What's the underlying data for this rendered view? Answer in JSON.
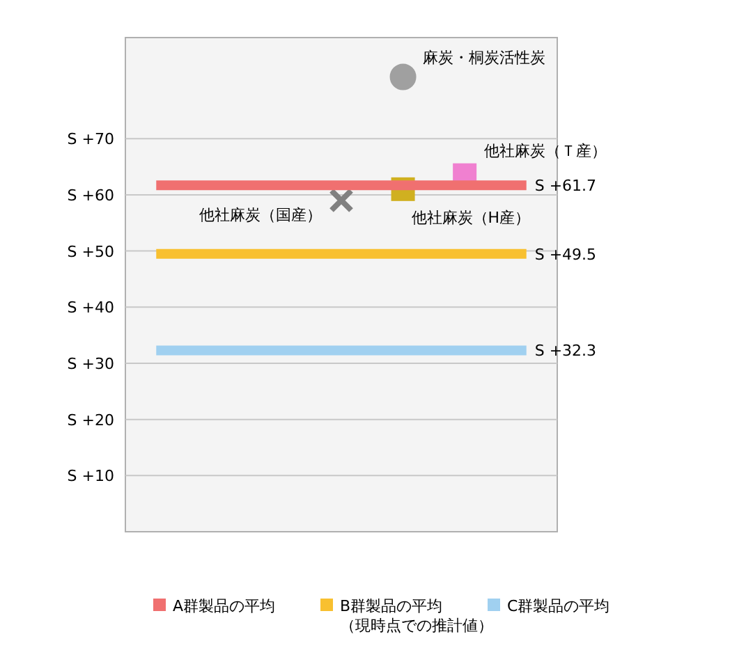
{
  "chart_data": {
    "type": "line",
    "categories": [
      null,
      null,
      null,
      null,
      null,
      null,
      null
    ],
    "ylim": [
      0,
      88
    ],
    "tick_labels": "y",
    "grid": "y",
    "legend": "bottom",
    "yticks": [
      {
        "value": 10,
        "label": "S +10"
      },
      {
        "value": 20,
        "label": "S +20"
      },
      {
        "value": 30,
        "label": "S +30"
      },
      {
        "value": 40,
        "label": "S +40"
      },
      {
        "value": 50,
        "label": "S +50"
      },
      {
        "value": 60,
        "label": "S +60"
      },
      {
        "value": 70,
        "label": "S +70"
      }
    ],
    "series": [
      {
        "name": "A群製品の平均",
        "color": "#f07070",
        "values": [
          61.7,
          61.7,
          61.7,
          61.7,
          61.7,
          61.7,
          61.7
        ],
        "value_labels": [
          null,
          null,
          null,
          null,
          null,
          null,
          "S +61.7"
        ]
      },
      {
        "name": "B群製品の平均（現時点での推計値）",
        "color": "#f8c030",
        "values": [
          49.5,
          49.5,
          49.5,
          49.5,
          49.5,
          49.5,
          49.5
        ],
        "value_labels": [
          null,
          null,
          null,
          null,
          null,
          null,
          "S +49.5"
        ]
      },
      {
        "name": "C群製品の平均",
        "color": "#a0d0f0",
        "values": [
          32.3,
          32.3,
          32.3,
          32.3,
          32.3,
          32.3,
          32.3
        ],
        "value_labels": [
          null,
          null,
          null,
          null,
          null,
          null,
          "S +32.3"
        ]
      },
      {
        "type": "scatter",
        "marker": "circle",
        "name": "麻炭・桐炭活性炭",
        "color": "#a0a0a0",
        "values": [
          null,
          null,
          null,
          null,
          81,
          null,
          null
        ]
      },
      {
        "type": "scatter",
        "marker": "square",
        "name": "他社麻炭（Ｔ産）",
        "color": "#f080d0",
        "values": [
          null,
          null,
          null,
          null,
          null,
          63.5,
          null
        ]
      },
      {
        "type": "scatter",
        "marker": "square",
        "name": "他社麻炭（H産）",
        "color": "#d0b020",
        "values": [
          null,
          null,
          null,
          null,
          61,
          null,
          null
        ]
      },
      {
        "type": "scatter",
        "marker": "cross",
        "name": "他社麻炭（国産）",
        "color": "#808080",
        "values": [
          null,
          null,
          null,
          59,
          null,
          null,
          null
        ]
      }
    ]
  }
}
